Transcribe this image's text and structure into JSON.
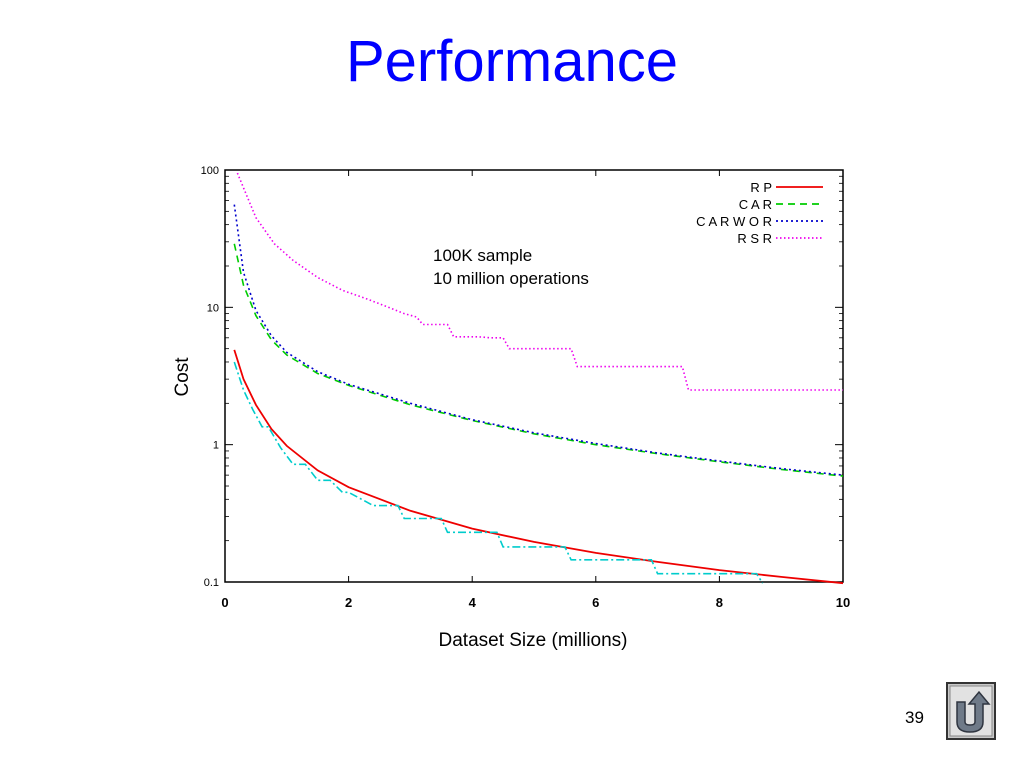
{
  "slide": {
    "title": "Performance",
    "number": "39"
  },
  "nav": {
    "icon": "u-turn-return-icon"
  },
  "colors": {
    "title": "#0000ff",
    "RP": "#ee0000",
    "CAR": "#00cc00",
    "CARWOR": "#0000cc",
    "RSR": "#ee00ee",
    "extra": "#00cccc"
  },
  "chart_data": {
    "type": "line",
    "title": "",
    "xlabel": "Dataset Size (millions)",
    "ylabel": "Cost",
    "yscale": "log",
    "xlim": [
      0,
      10
    ],
    "ylim": [
      0.1,
      100
    ],
    "xticks": [
      "0",
      "2",
      "4",
      "6",
      "8",
      "10"
    ],
    "yticks": [
      "0.1",
      "1",
      "10",
      "100"
    ],
    "legend_position": "top-right",
    "annotation": [
      "100K sample",
      "10 million operations"
    ],
    "series": [
      {
        "name": "R P",
        "style": "solid",
        "color_key": "RP",
        "x": [
          0.15,
          0.3,
          0.5,
          0.75,
          1.0,
          1.5,
          2,
          3,
          4,
          5,
          6,
          7,
          8,
          9,
          10
        ],
        "y": [
          4.9,
          3.0,
          1.95,
          1.3,
          0.98,
          0.65,
          0.49,
          0.33,
          0.245,
          0.196,
          0.163,
          0.14,
          0.122,
          0.109,
          0.098
        ]
      },
      {
        "name": "C A R",
        "style": "dashed",
        "color_key": "CAR",
        "x": [
          0.15,
          0.3,
          0.5,
          0.75,
          1.0,
          1.5,
          2,
          3,
          4,
          5,
          6,
          7,
          8,
          9,
          10
        ],
        "y": [
          29,
          14.5,
          8.7,
          5.8,
          4.5,
          3.3,
          2.7,
          1.95,
          1.5,
          1.2,
          1.0,
          0.86,
          0.75,
          0.66,
          0.59
        ]
      },
      {
        "name": "C A R W O R",
        "style": "dotted",
        "color_key": "CARWOR",
        "x": [
          0.15,
          0.3,
          0.5,
          0.75,
          1.0,
          1.5,
          2,
          3,
          4,
          5,
          6,
          7,
          8,
          9,
          10
        ],
        "y": [
          56,
          18,
          9.5,
          6.2,
          4.7,
          3.4,
          2.75,
          2.0,
          1.52,
          1.22,
          1.02,
          0.87,
          0.76,
          0.67,
          0.6
        ]
      },
      {
        "name": "R S R",
        "style": "dotted-fine",
        "color_key": "RSR",
        "x": [
          0.2,
          0.5,
          0.8,
          1.1,
          1.5,
          1.9,
          2.3,
          2.6,
          2.9,
          3.1,
          3.2,
          3.6,
          3.7,
          4.1,
          4.3,
          4.5,
          4.6,
          5.1,
          5.6,
          5.7,
          6.3,
          7.4,
          7.5,
          8.5,
          10
        ],
        "y": [
          95,
          45,
          29,
          22,
          16.5,
          13.3,
          11.5,
          10.2,
          9.0,
          8.5,
          7.5,
          7.5,
          6.1,
          6.1,
          6.0,
          6.0,
          5.0,
          5.0,
          5.0,
          3.7,
          3.7,
          3.7,
          2.5,
          2.5,
          2.5
        ]
      },
      {
        "name": "",
        "style": "dash-dot",
        "color_key": "extra",
        "x": [
          0.15,
          0.3,
          0.45,
          0.6,
          0.7,
          0.9,
          1.1,
          1.3,
          1.5,
          1.7,
          1.9,
          2.0,
          2.4,
          2.8,
          2.9,
          3.5,
          3.6,
          4.4,
          4.5,
          5.5,
          5.6,
          6.9,
          7.0,
          8.6,
          8.7
        ],
        "y": [
          4.0,
          2.5,
          1.8,
          1.35,
          1.35,
          0.95,
          0.72,
          0.72,
          0.55,
          0.55,
          0.45,
          0.45,
          0.36,
          0.36,
          0.29,
          0.29,
          0.23,
          0.23,
          0.18,
          0.18,
          0.145,
          0.145,
          0.115,
          0.115,
          0.098
        ]
      }
    ]
  }
}
